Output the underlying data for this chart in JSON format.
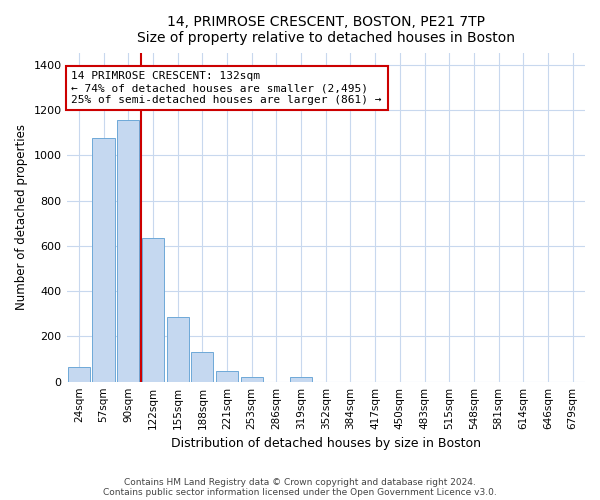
{
  "title1": "14, PRIMROSE CRESCENT, BOSTON, PE21 7TP",
  "title2": "Size of property relative to detached houses in Boston",
  "xlabel": "Distribution of detached houses by size in Boston",
  "ylabel": "Number of detached properties",
  "categories": [
    "24sqm",
    "57sqm",
    "90sqm",
    "122sqm",
    "155sqm",
    "188sqm",
    "221sqm",
    "253sqm",
    "286sqm",
    "319sqm",
    "352sqm",
    "384sqm",
    "417sqm",
    "450sqm",
    "483sqm",
    "515sqm",
    "548sqm",
    "581sqm",
    "614sqm",
    "646sqm",
    "679sqm"
  ],
  "values": [
    65,
    1075,
    1155,
    635,
    285,
    130,
    45,
    20,
    0,
    20,
    0,
    0,
    0,
    0,
    0,
    0,
    0,
    0,
    0,
    0,
    0
  ],
  "bar_color": "#c5d8f0",
  "bar_edge_color": "#6ea8d8",
  "vline_x_index": 3,
  "vline_color": "#cc0000",
  "annotation_text": "14 PRIMROSE CRESCENT: 132sqm\n← 74% of detached houses are smaller (2,495)\n25% of semi-detached houses are larger (861) →",
  "annotation_box_facecolor": "#ffffff",
  "annotation_box_edgecolor": "#cc0000",
  "ylim": [
    0,
    1450
  ],
  "yticks": [
    0,
    200,
    400,
    600,
    800,
    1000,
    1200,
    1400
  ],
  "footnote": "Contains HM Land Registry data © Crown copyright and database right 2024.\nContains public sector information licensed under the Open Government Licence v3.0.",
  "bg_color": "#ffffff",
  "plot_bg_color": "#ffffff",
  "grid_color": "#c8d8ee"
}
